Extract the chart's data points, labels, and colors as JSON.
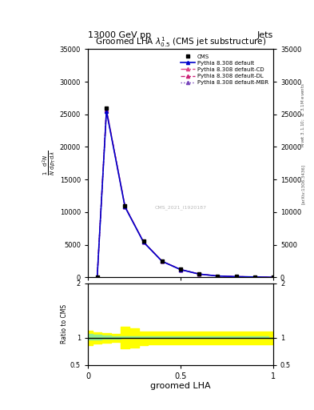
{
  "title_left": "13000 GeV pp",
  "title_right": "Jets",
  "plot_title": "Groomed LHA $\\lambda^{1}_{0.5}$ (CMS jet substructure)",
  "xlabel": "groomed LHA",
  "watermark": "CMS_2021_I1920187",
  "xlim": [
    0,
    1
  ],
  "ylim_main": [
    0,
    35000
  ],
  "ylim_ratio": [
    0.5,
    2
  ],
  "x_data": [
    0.05,
    0.1,
    0.2,
    0.3,
    0.4,
    0.5,
    0.6,
    0.7,
    0.8,
    0.9,
    1.0
  ],
  "cms_y": [
    0,
    26000,
    11000,
    5500,
    2500,
    1200,
    500,
    200,
    100,
    50,
    0
  ],
  "py_default_y": [
    0,
    25500,
    10800,
    5400,
    2450,
    1180,
    490,
    195,
    98,
    48,
    0
  ],
  "py_cd_y": [
    0,
    25800,
    10900,
    5450,
    2480,
    1190,
    495,
    197,
    99,
    49,
    0
  ],
  "py_dl_y": [
    0,
    25600,
    10850,
    5420,
    2460,
    1185,
    492,
    196,
    98,
    48,
    0
  ],
  "py_mbr_y": [
    0,
    25700,
    10870,
    5430,
    2470,
    1187,
    493,
    196,
    98,
    48,
    0
  ],
  "cms_color": "#000000",
  "default_color": "#0000cc",
  "cd_color": "#dd4488",
  "dl_color": "#cc2277",
  "mbr_color": "#7744bb",
  "green_band_lo": [
    0.96,
    0.97,
    0.975,
    0.98,
    0.99,
    0.99,
    0.99,
    0.99,
    0.99,
    0.99,
    0.99,
    0.99,
    0.99,
    0.99,
    0.99,
    0.99,
    0.99,
    0.99,
    0.99,
    0.99,
    1.0
  ],
  "green_band_hi": [
    1.07,
    1.05,
    1.04,
    1.03,
    1.02,
    1.02,
    1.02,
    1.02,
    1.02,
    1.02,
    1.02,
    1.02,
    1.02,
    1.02,
    1.02,
    1.02,
    1.02,
    1.02,
    1.02,
    1.02,
    1.0
  ],
  "yellow_band_lo": [
    0.87,
    0.9,
    0.91,
    0.93,
    0.8,
    0.82,
    0.87,
    0.88,
    0.88,
    0.88,
    0.88,
    0.88,
    0.88,
    0.88,
    0.88,
    0.88,
    0.88,
    0.88,
    0.88,
    0.88,
    0.88
  ],
  "yellow_band_hi": [
    1.13,
    1.1,
    1.09,
    1.07,
    1.2,
    1.18,
    1.12,
    1.11,
    1.11,
    1.11,
    1.11,
    1.11,
    1.11,
    1.11,
    1.11,
    1.11,
    1.11,
    1.11,
    1.11,
    1.11,
    1.11
  ],
  "yticks_main": [
    0,
    5000,
    10000,
    15000,
    20000,
    25000,
    30000,
    35000
  ],
  "ytick_labels_main": [
    "0",
    "5000",
    "10000",
    "15000",
    "20000",
    "25000",
    "30000",
    "35000"
  ],
  "right_label_top": "Rivet 3.1.10; $\\geq$ 3.1M events",
  "right_label_bot": "[arXiv:1306.3436]"
}
